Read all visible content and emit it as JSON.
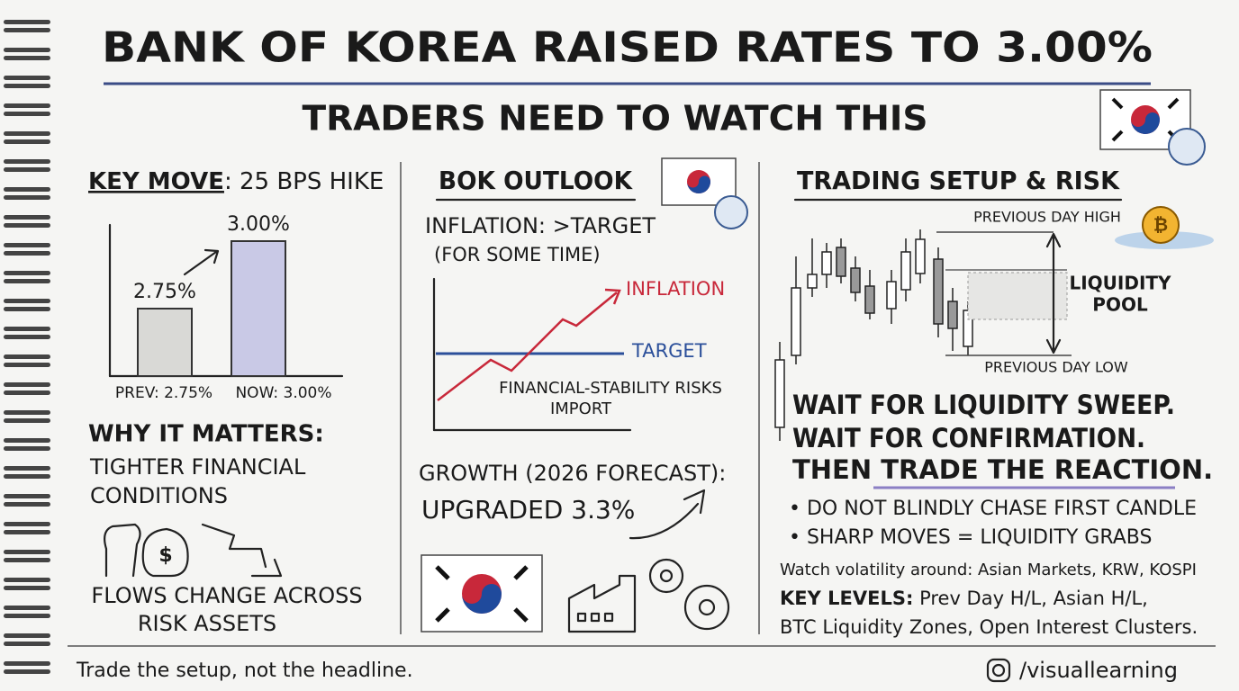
{
  "header": {
    "title": "BANK OF KOREA RAISED RATES TO 3.00%",
    "subtitle": "TRADERS NEED TO WATCH THIS"
  },
  "key_move": {
    "heading": "KEY MOVE",
    "heading_detail": ": 25 BPS HIKE",
    "chart": {
      "type": "bar",
      "categories": [
        "PREV: 2.75%",
        "NOW: 3.00%"
      ],
      "values": [
        2.75,
        3.0
      ],
      "value_labels": [
        "2.75%",
        "3.00%"
      ],
      "ylim": [
        2.5,
        3.06
      ],
      "colors": [
        "#d9d9d6",
        "#c9c9e6"
      ]
    },
    "why_heading": "WHY IT MATTERS:",
    "why_text": [
      "TIGHTER FINANCIAL",
      "CONDITIONS"
    ],
    "flows": [
      "FLOWS CHANGE ACROSS",
      "RISK ASSETS"
    ]
  },
  "outlook": {
    "heading": "BOK OUTLOOK",
    "inflation": "INFLATION: >TARGET",
    "inflation_note": "(FOR SOME TIME)",
    "chart_labels": {
      "inflation": "INFLATION",
      "target": "TARGET",
      "risk": [
        "FINANCIAL-STABILITY RISKS",
        "IMPORT"
      ]
    },
    "growth": "GROWTH (2026 FORECAST):",
    "growth_value": "UPGRADED 3.3%"
  },
  "trading": {
    "heading": "TRADING SETUP & RISK",
    "high": "PREVIOUS DAY HIGH",
    "low": "PREVIOUS DAY LOW",
    "pool": [
      "LIQUIDITY",
      "POOL"
    ],
    "steps": [
      "WAIT FOR LIQUIDITY SWEEP.",
      "WAIT FOR CONFIRMATION."
    ],
    "step3_prefix": "THEN",
    "step3_emph": "TRADE THE REACTION.",
    "bullets": [
      "• DO NOT BLINDLY CHASE FIRST CANDLE",
      "• SHARP MOVES = LIQUIDITY GRABS"
    ],
    "watch": "Watch volatility around: Asian Markets, KRW, KOSPI",
    "levels_label": "KEY LEVELS:",
    "levels": [
      "Prev Day H/L, Asian H/L,",
      "BTC Liquidity Zones, Open Interest Clusters."
    ]
  },
  "footer": {
    "tagline": "Trade the setup, not the headline.",
    "handle": "/visuallearning"
  }
}
